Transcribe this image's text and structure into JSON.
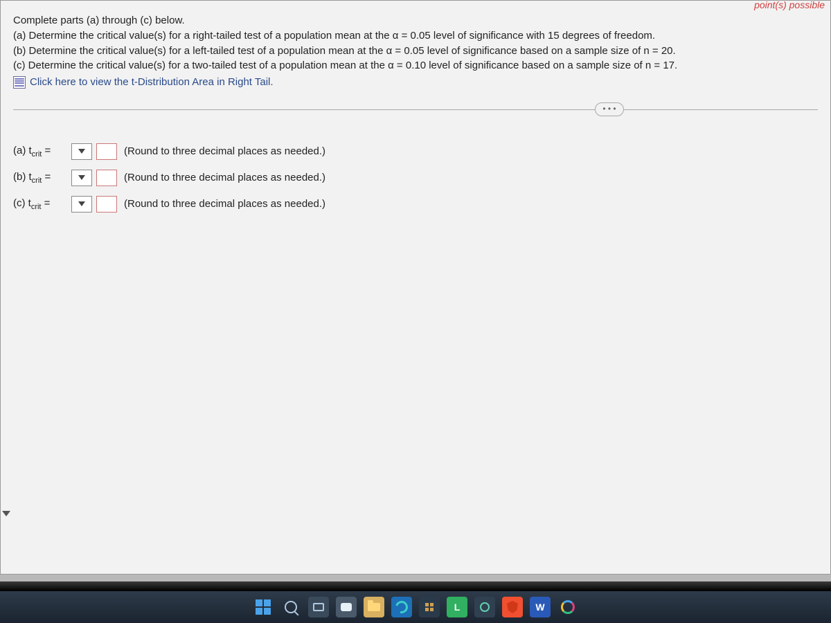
{
  "header": {
    "top_right": "point(s) possible"
  },
  "question": {
    "intro": "Complete parts (a) through (c) below.",
    "part_a": "(a) Determine the critical value(s) for a right-tailed test of a population mean at the α = 0.05 level of significance with 15 degrees of freedom.",
    "part_b": "(b) Determine the critical value(s) for a left-tailed test of a population mean at the α = 0.05 level  of significance based on a sample size of n = 20.",
    "part_c": "(c) Determine the critical value(s) for a two-tailed test of a population mean at the α = 0.10 level of significance based on a sample size of n = 17.",
    "link_text": "Click here to view the t-Distribution Area in Right Tail."
  },
  "ellipsis": "• • •",
  "answers": {
    "a": {
      "label_prefix": "(a) t",
      "label_sub": "crit",
      "label_suffix": " =",
      "sign": "",
      "value": "",
      "hint": "(Round to three decimal places as needed.)"
    },
    "b": {
      "label_prefix": "(b) t",
      "label_sub": "crit",
      "label_suffix": " =",
      "sign": "",
      "value": "",
      "hint": "(Round to three decimal places as needed.)"
    },
    "c": {
      "label_prefix": "(c) t",
      "label_sub": "crit",
      "label_suffix": " =",
      "sign": "",
      "value": "",
      "hint": "(Round to three decimal places as needed.)"
    }
  },
  "taskbar": {
    "l_label": "L",
    "w_label": "W"
  },
  "colors": {
    "panel_bg": "#f2f2f2",
    "body_bg": "#b8b8b8",
    "link": "#2a4a8a",
    "input_border": "#c77"
  }
}
